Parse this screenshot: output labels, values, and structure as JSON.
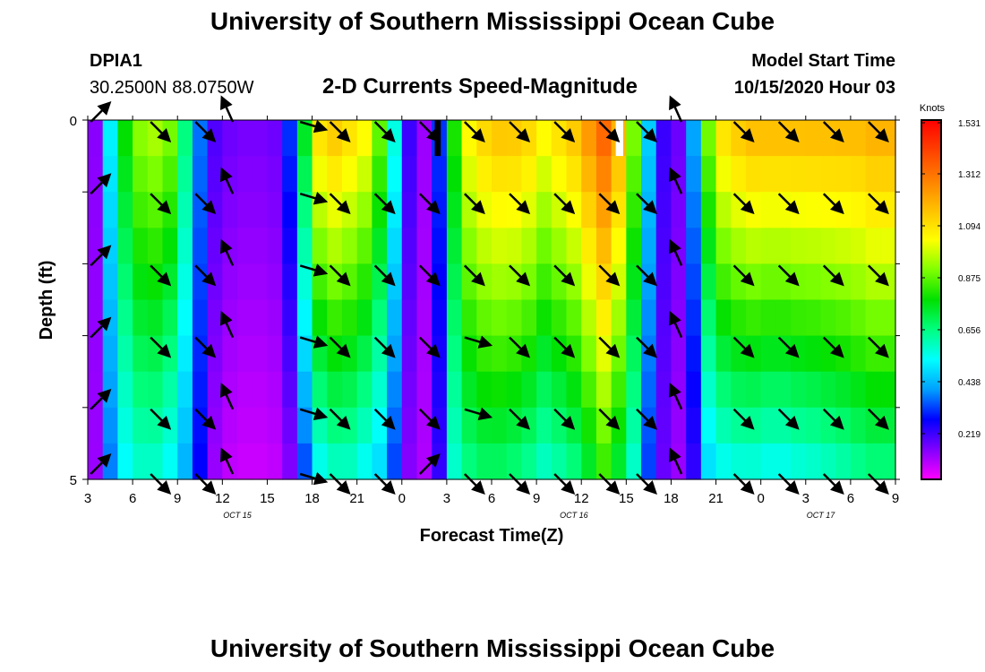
{
  "page": {
    "title": "University of Southern Mississippi Ocean Cube",
    "footer_title": "University of Southern Mississippi Ocean Cube",
    "station": {
      "id": "DPIA1",
      "coords": "30.2500N 88.0750W"
    },
    "model_start": {
      "label": "Model Start Time",
      "value": "10/15/2020 Hour 03"
    }
  },
  "chart_data": {
    "type": "heatmap",
    "title": "2-D Currents Speed-Magnitude",
    "xlabel": "Forecast Time(Z)",
    "ylabel": "Depth (ft)",
    "colorbar_label": "Knots",
    "colorbar_ticks": [
      "1.531",
      "1.312",
      "1.094",
      "0.875",
      "0.656",
      "0.438",
      "0.219"
    ],
    "color_range": [
      0,
      1.531
    ],
    "colormap": [
      "#ff00ff",
      "#8000ff",
      "#0000ff",
      "#00a0ff",
      "#00ffff",
      "#00ff80",
      "#00e000",
      "#80ff00",
      "#ffff00",
      "#ffc000",
      "#ff8000",
      "#ff4000",
      "#ff0000"
    ],
    "xlim": [
      3,
      57
    ],
    "ylim": [
      0,
      5
    ],
    "x_ticks": [
      {
        "h": 3,
        "label": "3"
      },
      {
        "h": 6,
        "label": "6"
      },
      {
        "h": 9,
        "label": "9"
      },
      {
        "h": 12,
        "label": "12"
      },
      {
        "h": 15,
        "label": "15"
      },
      {
        "h": 18,
        "label": "18"
      },
      {
        "h": 21,
        "label": "21"
      },
      {
        "h": 24,
        "label": "0"
      },
      {
        "h": 27,
        "label": "3"
      },
      {
        "h": 30,
        "label": "6"
      },
      {
        "h": 33,
        "label": "9"
      },
      {
        "h": 36,
        "label": "12"
      },
      {
        "h": 39,
        "label": "15"
      },
      {
        "h": 42,
        "label": "18"
      },
      {
        "h": 45,
        "label": "21"
      },
      {
        "h": 48,
        "label": "0"
      },
      {
        "h": 51,
        "label": "3"
      },
      {
        "h": 54,
        "label": "6"
      },
      {
        "h": 57,
        "label": "9"
      }
    ],
    "date_labels": [
      {
        "h": 13,
        "label": "OCT 15"
      },
      {
        "h": 35.5,
        "label": "OCT 16"
      },
      {
        "h": 52,
        "label": "OCT 17"
      }
    ],
    "y_ticks": [
      {
        "d": 0,
        "label": "0"
      },
      {
        "d": 5,
        "label": "5"
      }
    ],
    "depths": [
      0.25,
      0.75,
      1.25,
      1.75,
      2.25,
      2.75,
      3.25,
      3.75,
      4.25,
      4.75
    ],
    "column_speeds": [
      {
        "h": 3.5,
        "surface": 0.12,
        "bottom": 0.1
      },
      {
        "h": 4.5,
        "surface": 0.5,
        "bottom": 0.35
      },
      {
        "h": 5.5,
        "surface": 0.78,
        "bottom": 0.5
      },
      {
        "h": 6.5,
        "surface": 0.92,
        "bottom": 0.55
      },
      {
        "h": 7.5,
        "surface": 0.95,
        "bottom": 0.55
      },
      {
        "h": 8.5,
        "surface": 0.9,
        "bottom": 0.5
      },
      {
        "h": 9.5,
        "surface": 0.65,
        "bottom": 0.4
      },
      {
        "h": 10.5,
        "surface": 0.35,
        "bottom": 0.25
      },
      {
        "h": 11.5,
        "surface": 0.18,
        "bottom": 0.1
      },
      {
        "h": 12.5,
        "surface": 0.15,
        "bottom": 0.06
      },
      {
        "h": 13.5,
        "surface": 0.14,
        "bottom": 0.05
      },
      {
        "h": 14.5,
        "surface": 0.14,
        "bottom": 0.05
      },
      {
        "h": 15.5,
        "surface": 0.15,
        "bottom": 0.06
      },
      {
        "h": 16.5,
        "surface": 0.3,
        "bottom": 0.12
      },
      {
        "h": 17.5,
        "surface": 0.75,
        "bottom": 0.3
      },
      {
        "h": 18.5,
        "surface": 1.1,
        "bottom": 0.5
      },
      {
        "h": 19.5,
        "surface": 1.15,
        "bottom": 0.55
      },
      {
        "h": 20.5,
        "surface": 1.1,
        "bottom": 0.55
      },
      {
        "h": 21.5,
        "surface": 1.05,
        "bottom": 0.5
      },
      {
        "h": 22.5,
        "surface": 0.88,
        "bottom": 0.45
      },
      {
        "h": 23.5,
        "surface": 0.55,
        "bottom": 0.3
      },
      {
        "h": 24.5,
        "surface": 0.2,
        "bottom": 0.12
      },
      {
        "h": 25.5,
        "surface": 0.1,
        "bottom": 0.08
      },
      {
        "h": 26.5,
        "surface": 0.3,
        "bottom": 0.2
      },
      {
        "h": 27.5,
        "surface": 0.8,
        "bottom": 0.55
      },
      {
        "h": 28.5,
        "surface": 1.05,
        "bottom": 0.62
      },
      {
        "h": 29.5,
        "surface": 1.12,
        "bottom": 0.65
      },
      {
        "h": 30.5,
        "surface": 1.15,
        "bottom": 0.65
      },
      {
        "h": 31.5,
        "surface": 1.15,
        "bottom": 0.63
      },
      {
        "h": 32.5,
        "surface": 1.12,
        "bottom": 0.6
      },
      {
        "h": 33.5,
        "surface": 1.05,
        "bottom": 0.55
      },
      {
        "h": 34.5,
        "surface": 1.1,
        "bottom": 0.58
      },
      {
        "h": 35.5,
        "surface": 1.15,
        "bottom": 0.62
      },
      {
        "h": 36.5,
        "surface": 1.25,
        "bottom": 0.7
      },
      {
        "h": 37.5,
        "surface": 1.35,
        "bottom": 0.8
      },
      {
        "h": 38.5,
        "surface": 1.2,
        "bottom": 0.7
      },
      {
        "h": 39.5,
        "surface": 0.9,
        "bottom": 0.55
      },
      {
        "h": 40.5,
        "surface": 0.45,
        "bottom": 0.3
      },
      {
        "h": 41.5,
        "surface": 0.2,
        "bottom": 0.15
      },
      {
        "h": 42.5,
        "surface": 0.15,
        "bottom": 0.1
      },
      {
        "h": 43.5,
        "surface": 0.4,
        "bottom": 0.2
      },
      {
        "h": 44.5,
        "surface": 0.9,
        "bottom": 0.45
      },
      {
        "h": 45.5,
        "surface": 1.1,
        "bottom": 0.5
      },
      {
        "h": 46.5,
        "surface": 1.15,
        "bottom": 0.52
      },
      {
        "h": 47.5,
        "surface": 1.18,
        "bottom": 0.52
      },
      {
        "h": 48.5,
        "surface": 1.18,
        "bottom": 0.5
      },
      {
        "h": 49.5,
        "surface": 1.18,
        "bottom": 0.5
      },
      {
        "h": 50.5,
        "surface": 1.18,
        "bottom": 0.52
      },
      {
        "h": 51.5,
        "surface": 1.18,
        "bottom": 0.53
      },
      {
        "h": 52.5,
        "surface": 1.18,
        "bottom": 0.55
      },
      {
        "h": 53.5,
        "surface": 1.18,
        "bottom": 0.57
      },
      {
        "h": 54.5,
        "surface": 1.18,
        "bottom": 0.6
      },
      {
        "h": 55.5,
        "surface": 1.2,
        "bottom": 0.62
      },
      {
        "h": 56.5,
        "surface": 1.2,
        "bottom": 0.62
      }
    ],
    "vector_rows": [
      0,
      1,
      2,
      3,
      4,
      4.9
    ],
    "vector_columns": [
      {
        "h": 3,
        "dir": "NE"
      },
      {
        "h": 7,
        "dir": "SE"
      },
      {
        "h": 10,
        "dir": "SE"
      },
      {
        "h": 12.5,
        "dir": "NNW"
      },
      {
        "h": 17,
        "dir": "ESE"
      },
      {
        "h": 19,
        "dir": "SE"
      },
      {
        "h": 22,
        "dir": "SE"
      },
      {
        "h": 25,
        "dir": "SE"
      },
      {
        "h": 28,
        "dir": "SE"
      },
      {
        "h": 31,
        "dir": "SE"
      },
      {
        "h": 34,
        "dir": "SE"
      },
      {
        "h": 37,
        "dir": "SE"
      },
      {
        "h": 39.5,
        "dir": "SE"
      },
      {
        "h": 42.5,
        "dir": "NNW"
      },
      {
        "h": 46,
        "dir": "SE"
      },
      {
        "h": 49,
        "dir": "SE"
      },
      {
        "h": 52,
        "dir": "SE"
      },
      {
        "h": 55,
        "dir": "SE"
      }
    ],
    "vector_overrides": [
      {
        "h": 25,
        "row": 4.9,
        "dir": "NE"
      },
      {
        "h": 28,
        "row": 4,
        "dir": "ESE"
      },
      {
        "h": 28,
        "row": 3,
        "dir": "ESE"
      }
    ],
    "gaps": [
      {
        "h_start": 26.2,
        "h_end": 26.6,
        "depth_end": 0.5,
        "color": "#000000"
      },
      {
        "h_start": 38.3,
        "h_end": 38.8,
        "depth_end": 0.5,
        "color": "#ffffff"
      }
    ]
  }
}
